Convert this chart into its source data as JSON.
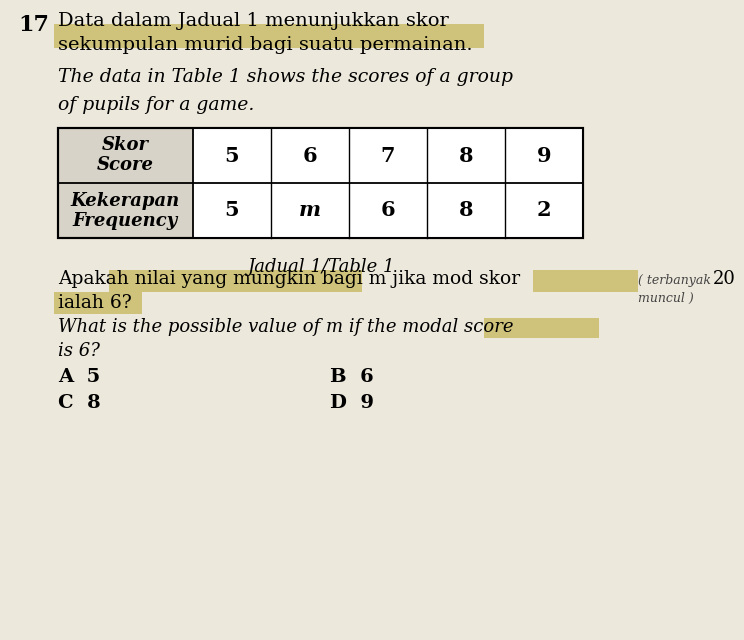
{
  "question_number": "17",
  "malay_text_line1": "Data dalam Jadual 1 menunjukkan skor",
  "malay_text_line2": "sekumpulan murid bagi suatu permainan.",
  "english_text_line1": "The data in Table 1 shows the scores of a group",
  "english_text_line2": "of pupils for a game.",
  "table_caption": "Jadual 1/Table 1",
  "table_header_row1_label": "Skor",
  "table_header_row1_label2": "Score",
  "table_header_row2_label": "Kekerapan",
  "table_header_row2_label2": "Frequency",
  "scores": [
    "5",
    "6",
    "7",
    "8",
    "9"
  ],
  "frequencies": [
    "5",
    "m",
    "6",
    "8",
    "2"
  ],
  "question_malay_line1": "Apakah nilai yang mungkin bagi m jika mod skor",
  "question_malay_line2": "ialah 6?",
  "question_english_line1": "What is the possible value of m if the modal score",
  "question_english_line2": "is 6?",
  "opt_A": "A  5",
  "opt_B": "B  6",
  "opt_C": "C  8",
  "opt_D": "D  9",
  "highlight_color": "#cfc27a",
  "bg_color": "#ede8dc",
  "page_number": "20",
  "annotation1": "( terbanyak",
  "annotation2": "muncul )"
}
